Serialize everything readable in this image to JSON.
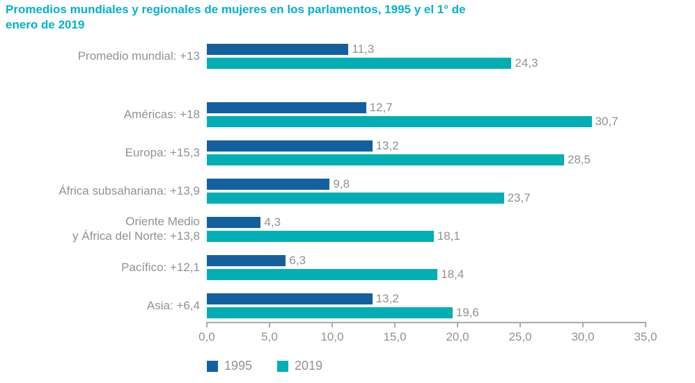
{
  "title": "Promedios mundiales y regionales de mujeres en los parlamentos, 1995 y el 1° de\nenero de 2019",
  "colors": {
    "title": "#00b1cd",
    "series_1995": "#14609f",
    "series_2019": "#00aeb4",
    "text_gray": "#909195",
    "axis_gray": "#a9a9ad"
  },
  "chart_data": {
    "type": "bar",
    "orientation": "horizontal",
    "title": "Promedios mundiales y regionales de mujeres en los parlamentos, 1995 y el 1° de enero de 2019",
    "categories": [
      "Promedio mundial: +13",
      "Américas: +18",
      "Europa: +15,3",
      "África subsahariana: +13,9",
      "Oriente Medio\ny África del Norte: +13,8",
      "Pacífico: +12,1",
      "Asia: +6,4"
    ],
    "series": [
      {
        "name": "1995",
        "values": [
          11.3,
          12.7,
          13.2,
          9.8,
          4.3,
          6.3,
          13.2
        ],
        "labels": [
          "11,3",
          "12,7",
          "13,2",
          "9,8",
          "4,3",
          "6,3",
          "13,2"
        ]
      },
      {
        "name": "2019",
        "values": [
          24.3,
          30.7,
          28.5,
          23.7,
          18.1,
          18.4,
          19.6
        ],
        "labels": [
          "24,3",
          "30,7",
          "28,5",
          "23,7",
          "18,1",
          "18,4",
          "19,6"
        ]
      }
    ],
    "xlim": [
      0,
      35
    ],
    "x_ticks": [
      "0,0",
      "5,0",
      "10,0",
      "15,0",
      "20,0",
      "25,0",
      "30,0",
      "35,0"
    ],
    "grid": false,
    "legend_position": "bottom"
  }
}
